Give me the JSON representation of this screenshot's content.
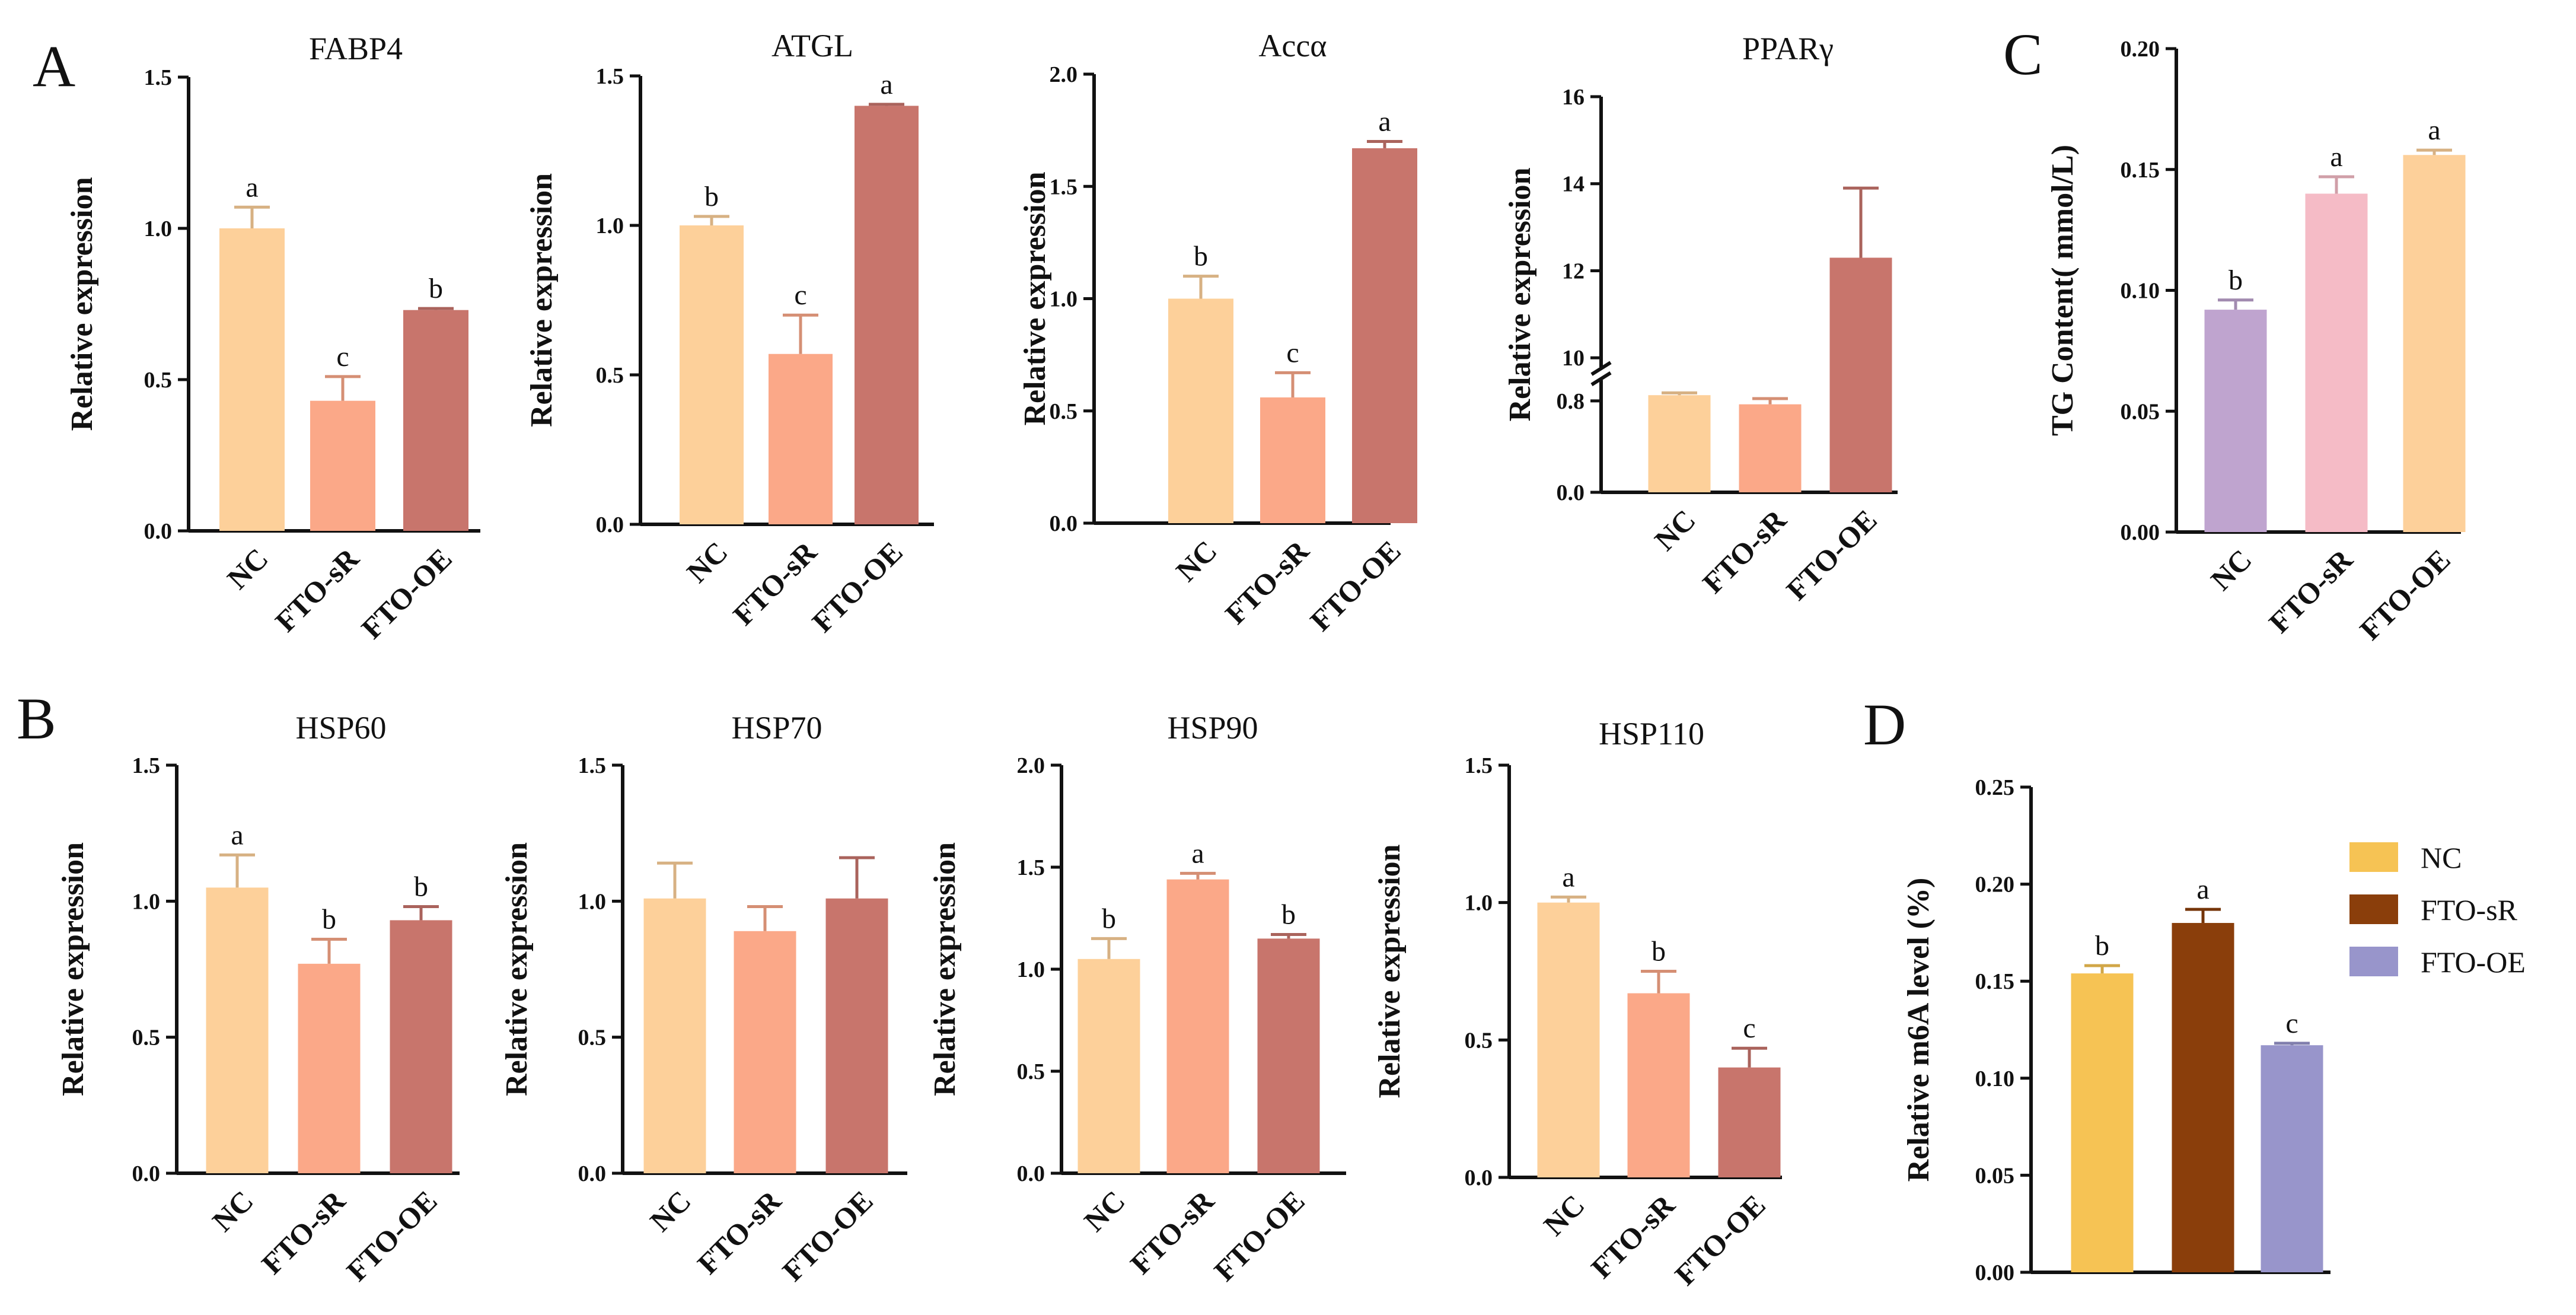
{
  "panel_labels": [
    "A",
    "B",
    "C",
    "D"
  ],
  "colors": {
    "nc_light": "#FDD09A",
    "sr_light": "#FBA888",
    "oe_light": "#C8756C",
    "c_nc": "#BFA4CF",
    "c_sr": "#F5BBC6",
    "c_oe": "#FDD09A",
    "d_nc": "#F6C354",
    "d_sr": "#8A3E0B",
    "d_oe": "#9895CB"
  },
  "legend": [
    {
      "label": "NC",
      "color": "#F6C354"
    },
    {
      "label": "FTO-sR",
      "color": "#8A3E0B"
    },
    {
      "label": "FTO-OE",
      "color": "#9895CB"
    }
  ],
  "chart_data": [
    {
      "id": "fabp4",
      "type": "bar",
      "title": "FABP4",
      "ylabel": "Relative expression",
      "categories": [
        "NC",
        "FTO-sR",
        "FTO-OE"
      ],
      "values": [
        1.0,
        0.43,
        0.73
      ],
      "errors": [
        0.07,
        0.08,
        0.005
      ],
      "sig": [
        "a",
        "c",
        "b"
      ],
      "ylim": [
        0,
        1.5
      ],
      "yticks": [
        0.0,
        0.5,
        1.0,
        1.5
      ],
      "tick_labels": [
        "0.0",
        "0.5",
        "1.0",
        "1.5"
      ],
      "colors": [
        "#FDD09A",
        "#FBA888",
        "#C8756C"
      ]
    },
    {
      "id": "atgl",
      "type": "bar",
      "title": "ATGL",
      "ylabel": "Relative expression",
      "categories": [
        "NC",
        "FTO-sR",
        "FTO-OE"
      ],
      "values": [
        1.0,
        0.57,
        1.4
      ],
      "errors": [
        0.03,
        0.13,
        0.005
      ],
      "sig": [
        "b",
        "c",
        "a"
      ],
      "ylim": [
        0,
        1.5
      ],
      "yticks": [
        0.0,
        0.5,
        1.0,
        1.5
      ],
      "tick_labels": [
        "0.0",
        "0.5",
        "1.0",
        "1.5"
      ],
      "colors": [
        "#FDD09A",
        "#FBA888",
        "#C8756C"
      ]
    },
    {
      "id": "acca",
      "type": "bar",
      "title": "Accα",
      "ylabel": "Relative expression",
      "categories": [
        "NC",
        "FTO-sR",
        "FTO-OE"
      ],
      "values": [
        1.0,
        0.56,
        1.67
      ],
      "errors": [
        0.1,
        0.11,
        0.03
      ],
      "sig": [
        "b",
        "c",
        "a"
      ],
      "ylim": [
        0,
        2.0
      ],
      "yticks": [
        0.0,
        0.5,
        1.0,
        1.5,
        2.0
      ],
      "tick_labels": [
        "0.0",
        "0.5",
        "1.0",
        "1.5",
        "2.0"
      ],
      "colors": [
        "#FDD09A",
        "#FBA888",
        "#C8756C"
      ]
    },
    {
      "id": "pparg",
      "type": "bar",
      "title": "PPARγ",
      "ylabel": "Relative expression",
      "categories": [
        "NC",
        "FTO-sR",
        "FTO-OE"
      ],
      "values": [
        0.85,
        0.77,
        12.3
      ],
      "errors": [
        0.02,
        0.05,
        1.6
      ],
      "sig": [
        "",
        "",
        ""
      ],
      "axis_break": [
        0.9,
        10
      ],
      "ylim": [
        0,
        16
      ],
      "yticks": [
        0.0,
        0.8,
        10,
        12,
        14,
        16
      ],
      "tick_labels": [
        "0.0",
        "0.8",
        "10",
        "12",
        "14",
        "16"
      ],
      "colors": [
        "#FDD09A",
        "#FBA888",
        "#C8756C"
      ]
    },
    {
      "id": "tg",
      "type": "bar",
      "title": "",
      "ylabel": "TG Content( mmol/L)",
      "categories": [
        "NC",
        "FTO-sR",
        "FTO-OE"
      ],
      "values": [
        0.092,
        0.14,
        0.156
      ],
      "errors": [
        0.004,
        0.007,
        0.002
      ],
      "sig": [
        "b",
        "a",
        "a"
      ],
      "ylim": [
        0,
        0.2
      ],
      "yticks": [
        0.0,
        0.05,
        0.1,
        0.15,
        0.2
      ],
      "tick_labels": [
        "0.00",
        "0.05",
        "0.10",
        "0.15",
        "0.20"
      ],
      "colors": [
        "#BFA4CF",
        "#F5BBC6",
        "#FDD09A"
      ]
    },
    {
      "id": "hsp60",
      "type": "bar",
      "title": "HSP60",
      "ylabel": "Relative expression",
      "categories": [
        "NC",
        "FTO-sR",
        "FTO-OE"
      ],
      "values": [
        1.05,
        0.77,
        0.93
      ],
      "errors": [
        0.12,
        0.09,
        0.05
      ],
      "sig": [
        "a",
        "b",
        "b"
      ],
      "ylim": [
        0,
        1.5
      ],
      "yticks": [
        0.0,
        0.5,
        1.0,
        1.5
      ],
      "tick_labels": [
        "0.0",
        "0.5",
        "1.0",
        "1.5"
      ],
      "colors": [
        "#FDD09A",
        "#FBA888",
        "#C8756C"
      ]
    },
    {
      "id": "hsp70",
      "type": "bar",
      "title": "HSP70",
      "ylabel": "Relative expression",
      "categories": [
        "NC",
        "FTO-sR",
        "FTO-OE"
      ],
      "values": [
        1.01,
        0.89,
        1.01
      ],
      "errors": [
        0.13,
        0.09,
        0.15
      ],
      "sig": [
        "",
        "",
        ""
      ],
      "ylim": [
        0,
        1.5
      ],
      "yticks": [
        0.0,
        0.5,
        1.0,
        1.5
      ],
      "tick_labels": [
        "0.0",
        "0.5",
        "1.0",
        "1.5"
      ],
      "colors": [
        "#FDD09A",
        "#FBA888",
        "#C8756C"
      ]
    },
    {
      "id": "hsp90",
      "type": "bar",
      "title": "HSP90",
      "ylabel": "Relative expression",
      "categories": [
        "NC",
        "FTO-sR",
        "FTO-OE"
      ],
      "values": [
        1.05,
        1.44,
        1.15
      ],
      "errors": [
        0.1,
        0.03,
        0.02
      ],
      "sig": [
        "b",
        "a",
        "b"
      ],
      "ylim": [
        0,
        2.0
      ],
      "yticks": [
        0.0,
        0.5,
        1.0,
        1.5,
        2.0
      ],
      "tick_labels": [
        "0.0",
        "0.5",
        "1.0",
        "1.5",
        "2.0"
      ],
      "colors": [
        "#FDD09A",
        "#FBA888",
        "#C8756C"
      ]
    },
    {
      "id": "hsp110",
      "type": "bar",
      "title": "HSP110",
      "ylabel": "Relative expression",
      "categories": [
        "NC",
        "FTO-sR",
        "FTO-OE"
      ],
      "values": [
        1.0,
        0.67,
        0.4
      ],
      "errors": [
        0.02,
        0.08,
        0.07
      ],
      "sig": [
        "a",
        "b",
        "c"
      ],
      "ylim": [
        0,
        1.5
      ],
      "yticks": [
        0.0,
        0.5,
        1.0,
        1.5
      ],
      "tick_labels": [
        "0.0",
        "0.5",
        "1.0",
        "1.5"
      ],
      "colors": [
        "#FDD09A",
        "#FBA888",
        "#C8756C"
      ]
    },
    {
      "id": "m6a",
      "type": "bar",
      "title": "",
      "ylabel": "Relative m6A level (%)",
      "categories": [
        "NC",
        "FTO-sR",
        "FTO-OE"
      ],
      "values": [
        0.154,
        0.18,
        0.117
      ],
      "errors": [
        0.004,
        0.007,
        0.001
      ],
      "sig": [
        "b",
        "a",
        "c"
      ],
      "show_categories": false,
      "ylim": [
        0,
        0.25
      ],
      "yticks": [
        0.0,
        0.05,
        0.1,
        0.15,
        0.2,
        0.25
      ],
      "tick_labels": [
        "0.00",
        "0.05",
        "0.10",
        "0.15",
        "0.20",
        "0.25"
      ],
      "colors": [
        "#F6C354",
        "#8A3E0B",
        "#9895CB"
      ]
    }
  ]
}
